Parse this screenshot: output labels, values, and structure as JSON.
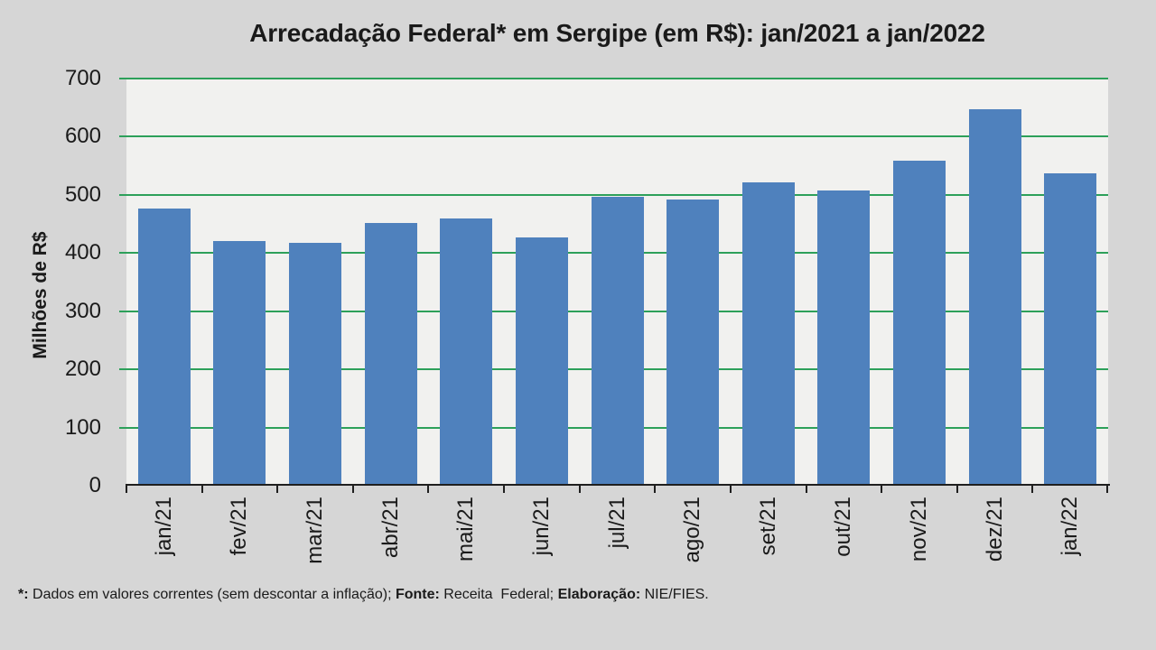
{
  "page": {
    "background": "#D6D6D6"
  },
  "header": {
    "title": "Arrecadação Federal* em Sergipe (em R$): jan/2021 a jan/2022"
  },
  "footnote": {
    "segments": [
      {
        "text": "*:",
        "bold": true
      },
      {
        "text": " Dados em valores correntes (sem descontar a inflação); ",
        "bold": false
      },
      {
        "text": "Fonte:",
        "bold": true
      },
      {
        "text": " Receita  Federal; ",
        "bold": false
      },
      {
        "text": "Elaboração:",
        "bold": true
      },
      {
        "text": " NIE/FIES.",
        "bold": false
      }
    ]
  },
  "chart_data": {
    "type": "bar",
    "title": "Arrecadação Federal* em Sergipe (em R$): jan/2021 a jan/2022",
    "categories": [
      "jan/21",
      "fev/21",
      "mar/21",
      "abr/21",
      "mai/21",
      "jun/21",
      "jul/21",
      "ago/21",
      "set/21",
      "out/21",
      "nov/21",
      "dez/21",
      "jan/22"
    ],
    "values": [
      476,
      421,
      418,
      452,
      460,
      427,
      496,
      492,
      521,
      507,
      559,
      648,
      537
    ],
    "xlabel": "",
    "ylabel": "Milhões de R$",
    "ylim": [
      0,
      700
    ],
    "yticks": [
      0,
      100,
      200,
      300,
      400,
      500,
      600,
      700
    ],
    "grid": "horizontal",
    "legend": false,
    "x_tick_rotation_deg": -90,
    "colors": {
      "bar": "#4F81BD",
      "gridline": "#2DA05A",
      "plot_background": "#F1F1EF",
      "page_background": "#D6D6D6",
      "axis": "#1F1F1F",
      "text": "#1A1A1A"
    }
  }
}
